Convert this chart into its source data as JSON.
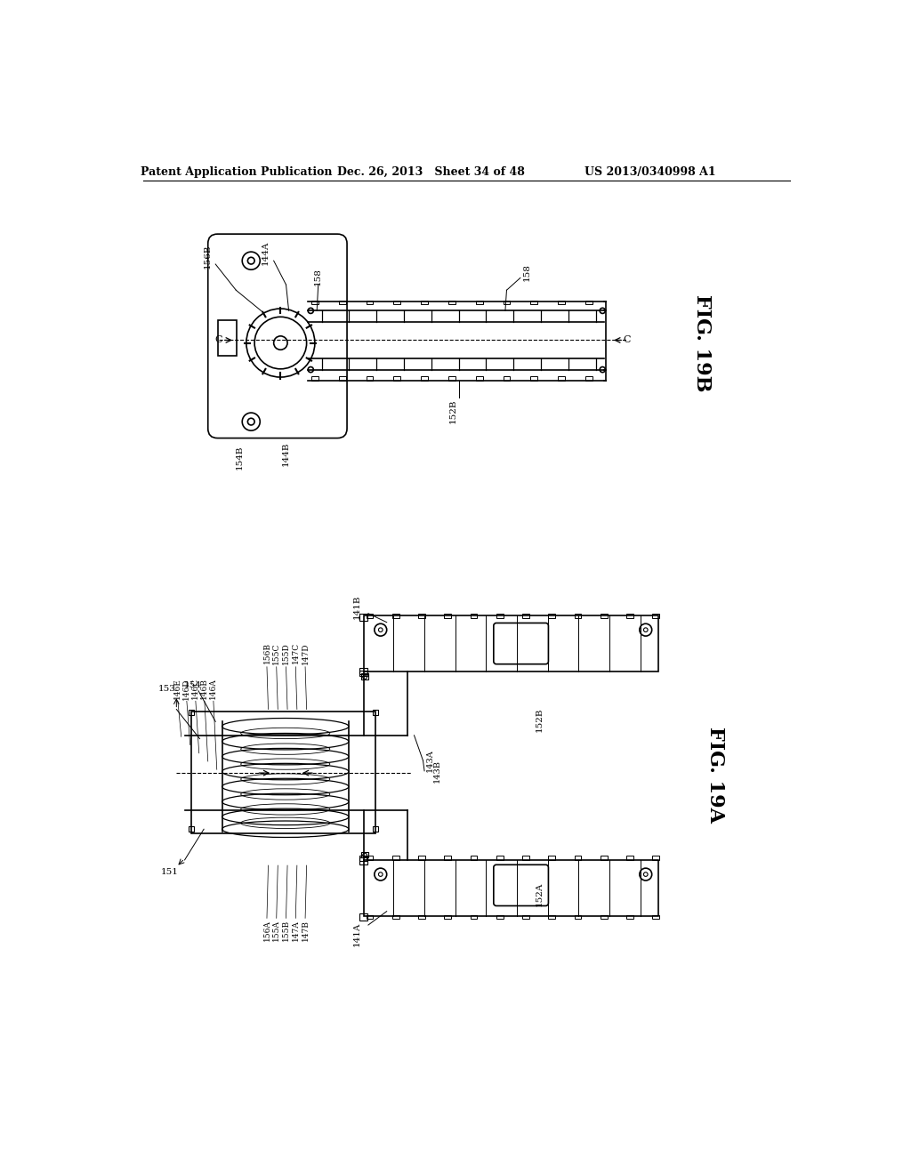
{
  "bg_color": "#ffffff",
  "header_left": "Patent Application Publication",
  "header_mid": "Dec. 26, 2013   Sheet 34 of 48",
  "header_right": "US 2013/0340998 A1",
  "fig19b_label": "FIG. 19B",
  "fig19a_label": "FIG. 19A",
  "line_color": "#000000",
  "line_width": 1.2
}
